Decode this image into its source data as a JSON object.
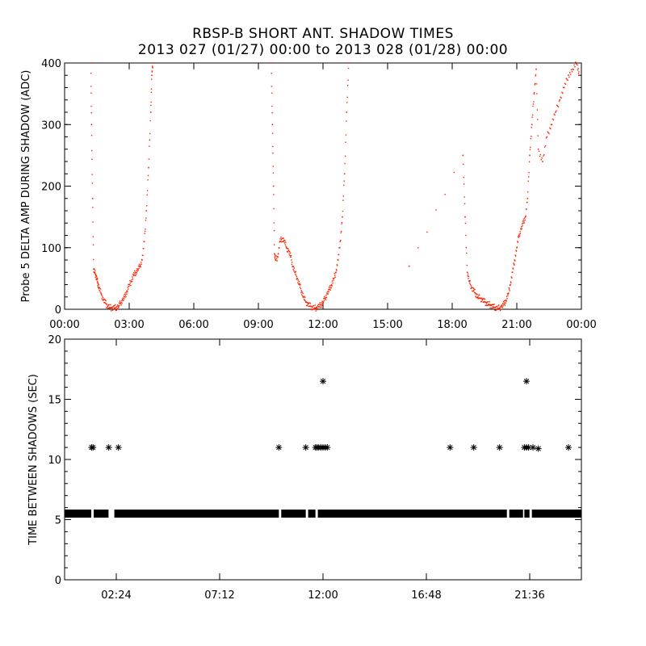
{
  "title_line1": "RBSP-B SHORT ANT. SHADOW TIMES",
  "title_line2": "2013 027 (01/27) 00:00 to 2013 028 (01/28) 00:00",
  "chart_data": [
    {
      "type": "scatter",
      "ylabel": "Probe 5 DELTA AMP DURING SHADOW (ADC)",
      "xlabel": "",
      "xlim_hours": [
        0,
        24
      ],
      "ylim": [
        0,
        400
      ],
      "x_tick_labels": [
        "00:00",
        "03:00",
        "06:00",
        "09:00",
        "12:00",
        "15:00",
        "18:00",
        "21:00",
        "00:00"
      ],
      "y_tick_labels": [
        "0",
        "100",
        "200",
        "300",
        "400"
      ],
      "point_color": "#ff2200",
      "series": [
        {
          "x_hours": [
            1.22,
            1.25,
            1.3,
            1.35,
            1.4,
            1.45,
            1.5,
            1.55,
            1.6,
            1.7,
            1.8,
            1.9,
            2.0,
            2.1,
            2.2,
            2.3,
            2.4,
            2.5,
            2.6,
            2.7,
            2.8,
            2.9,
            3.0,
            3.1,
            3.2,
            3.3,
            3.4,
            3.5,
            3.6,
            3.7,
            3.8,
            3.9,
            4.0,
            4.05,
            4.1
          ],
          "values": [
            400,
            300,
            180,
            65,
            60,
            55,
            48,
            42,
            35,
            25,
            15,
            10,
            5,
            3,
            2,
            2,
            3,
            5,
            10,
            15,
            20,
            30,
            40,
            45,
            55,
            60,
            65,
            70,
            80,
            110,
            160,
            230,
            320,
            380,
            400
          ]
        },
        {
          "x_hours": [
            9.6,
            9.65,
            9.7,
            9.75,
            9.8,
            9.9,
            10.0,
            10.1,
            10.2,
            10.3,
            10.4,
            10.5,
            10.6,
            10.7,
            10.8,
            10.9,
            11.0,
            11.1,
            11.2,
            11.3,
            11.4,
            11.5,
            11.6,
            11.7,
            11.8,
            11.9,
            12.0,
            12.1,
            12.2,
            12.3,
            12.4,
            12.5,
            12.6,
            12.7,
            12.8,
            12.9,
            13.0,
            13.1,
            13.2
          ],
          "values": [
            400,
            300,
            200,
            90,
            80,
            85,
            110,
            115,
            112,
            100,
            95,
            85,
            70,
            60,
            50,
            40,
            30,
            20,
            12,
            8,
            5,
            3,
            2,
            2,
            4,
            8,
            12,
            18,
            25,
            32,
            40,
            50,
            60,
            80,
            110,
            150,
            220,
            320,
            400
          ]
        },
        {
          "x_hours": [
            16.0,
            18.5,
            18.6,
            18.7,
            18.8,
            18.9,
            19.0,
            19.1,
            19.2,
            19.3,
            19.4,
            19.5,
            19.6,
            19.7,
            19.8,
            19.9,
            20.0,
            20.1,
            20.2,
            20.3,
            20.4,
            20.5,
            20.6,
            20.7,
            20.8,
            20.9,
            21.0,
            21.1,
            21.2,
            21.3,
            21.4,
            21.5,
            21.6,
            21.7,
            21.8,
            21.9,
            22.0,
            22.2,
            22.4,
            22.6,
            22.8,
            23.0,
            23.2,
            23.4,
            23.6,
            23.8,
            23.9
          ],
          "values": [
            70,
            250,
            150,
            60,
            45,
            35,
            30,
            25,
            20,
            18,
            15,
            12,
            10,
            8,
            6,
            4,
            3,
            2,
            2,
            4,
            8,
            15,
            25,
            40,
            60,
            80,
            100,
            120,
            130,
            140,
            150,
            180,
            250,
            300,
            350,
            390,
            260,
            240,
            280,
            300,
            320,
            340,
            360,
            380,
            390,
            400,
            380
          ]
        }
      ]
    },
    {
      "type": "scatter",
      "ylabel": "TIME BETWEEN SHADOWS (SEC)",
      "xlabel": "",
      "xlim_hours": [
        0,
        24
      ],
      "ylim": [
        0,
        20
      ],
      "x_tick_labels": [
        "02:24",
        "07:12",
        "12:00",
        "16:48",
        "21:36"
      ],
      "y_tick_labels": [
        "0",
        "5",
        "10",
        "15",
        "20"
      ],
      "marker": "*",
      "point_color": "#000000",
      "baseline": {
        "value": 5.5,
        "gaps_hours": [
          [
            1.25,
            1.35
          ],
          [
            2.05,
            2.3
          ],
          [
            9.95,
            10.05
          ],
          [
            11.2,
            11.3
          ],
          [
            11.65,
            11.75
          ],
          [
            20.55,
            20.65
          ],
          [
            21.3,
            21.35
          ],
          [
            21.6,
            21.7
          ]
        ]
      },
      "series": [
        {
          "x_hours": [
            1.25,
            1.32,
            2.05,
            2.5,
            9.95,
            11.2,
            11.65,
            11.72,
            11.8,
            11.9,
            12.0,
            12.1,
            12.2,
            17.9,
            19.0,
            20.2,
            21.35,
            21.45,
            21.55,
            21.75,
            22.0,
            23.4
          ],
          "values": [
            11,
            11,
            11,
            11,
            11,
            11,
            11,
            11,
            11,
            11,
            11,
            11,
            11,
            11,
            11,
            11,
            11,
            11,
            11,
            11,
            10.9,
            11
          ]
        },
        {
          "x_hours": [
            12.0,
            21.45
          ],
          "values": [
            16.5,
            16.5
          ]
        }
      ]
    }
  ]
}
